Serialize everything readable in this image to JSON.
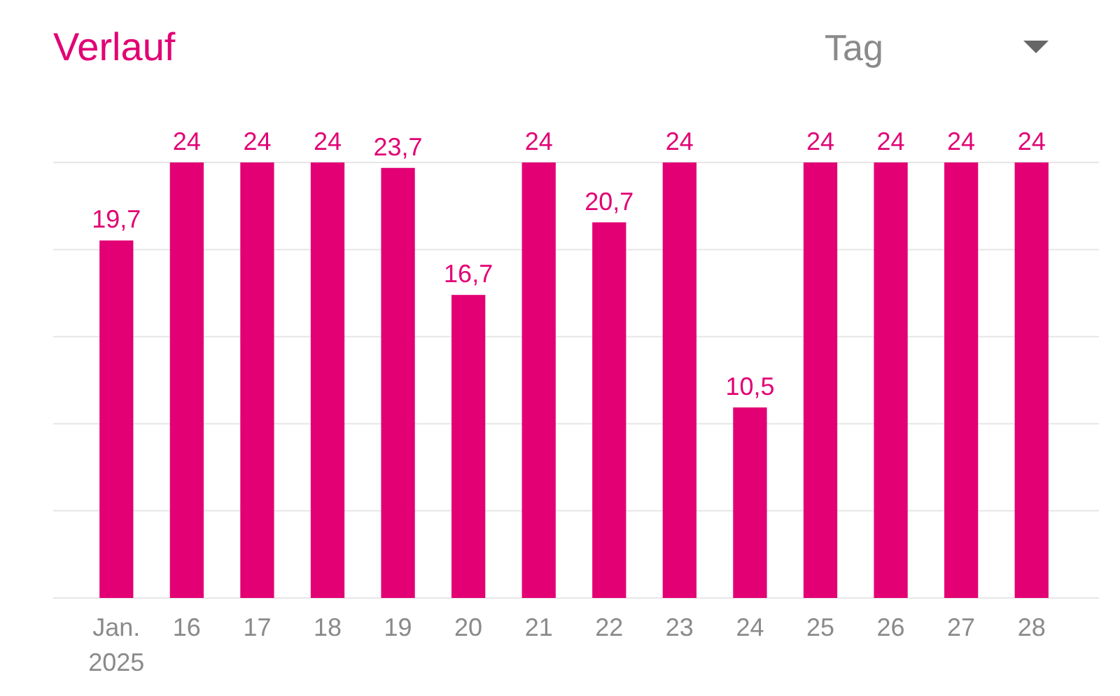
{
  "chart_data": {
    "type": "bar",
    "title": "Verlauf",
    "annotations": [
      "Tag"
    ],
    "categories": [
      "Jan. 2025",
      "16",
      "17",
      "18",
      "19",
      "20",
      "21",
      "22",
      "23",
      "24",
      "25",
      "26",
      "27",
      "28"
    ],
    "values": [
      19.7,
      24,
      24,
      24,
      23.7,
      16.7,
      24,
      20.7,
      24,
      10.5,
      24,
      24,
      24,
      24
    ],
    "value_labels": [
      "19,7",
      "24",
      "24",
      "24",
      "23,7",
      "16,7",
      "24",
      "20,7",
      "24",
      "10,5",
      "24",
      "24",
      "24",
      "24"
    ],
    "color": "#e20074",
    "ylim": [
      0,
      24
    ],
    "yticks": [
      {
        "value": 0,
        "label": null
      },
      {
        "value": 4.8,
        "label": null
      },
      {
        "value": 9.6,
        "label": null
      },
      {
        "value": 14.4,
        "label": null
      },
      {
        "value": 19.2,
        "label": null
      },
      {
        "value": 24,
        "label": null
      }
    ],
    "grid": "y",
    "tick_labels": "x"
  }
}
